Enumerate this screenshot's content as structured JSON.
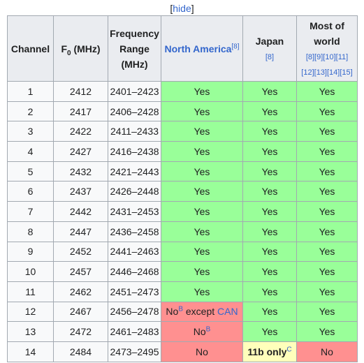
{
  "toggle": {
    "bracket_open": "[",
    "label": "hide",
    "bracket_close": "]"
  },
  "headers": {
    "channel": "Channel",
    "f0_main": "F",
    "f0_sub": "0",
    "f0_unit": " (MHz)",
    "freq_range": "Frequency Range (MHz)",
    "na_label": "North America",
    "na_ref": "[8]",
    "japan_label": "Japan",
    "japan_ref": "[8]",
    "world_label": "Most of world",
    "world_refs_line1": "[8][9][10][11]",
    "world_refs_line2": "[12][13][14][15]"
  },
  "rows": [
    {
      "ch": "1",
      "f0": "2412",
      "range": "2401–2423",
      "na": "Yes",
      "jp": "Yes",
      "world": "Yes"
    },
    {
      "ch": "2",
      "f0": "2417",
      "range": "2406–2428",
      "na": "Yes",
      "jp": "Yes",
      "world": "Yes"
    },
    {
      "ch": "3",
      "f0": "2422",
      "range": "2411–2433",
      "na": "Yes",
      "jp": "Yes",
      "world": "Yes"
    },
    {
      "ch": "4",
      "f0": "2427",
      "range": "2416–2438",
      "na": "Yes",
      "jp": "Yes",
      "world": "Yes"
    },
    {
      "ch": "5",
      "f0": "2432",
      "range": "2421–2443",
      "na": "Yes",
      "jp": "Yes",
      "world": "Yes"
    },
    {
      "ch": "6",
      "f0": "2437",
      "range": "2426–2448",
      "na": "Yes",
      "jp": "Yes",
      "world": "Yes"
    },
    {
      "ch": "7",
      "f0": "2442",
      "range": "2431–2453",
      "na": "Yes",
      "jp": "Yes",
      "world": "Yes"
    },
    {
      "ch": "8",
      "f0": "2447",
      "range": "2436–2458",
      "na": "Yes",
      "jp": "Yes",
      "world": "Yes"
    },
    {
      "ch": "9",
      "f0": "2452",
      "range": "2441–2463",
      "na": "Yes",
      "jp": "Yes",
      "world": "Yes"
    },
    {
      "ch": "10",
      "f0": "2457",
      "range": "2446–2468",
      "na": "Yes",
      "jp": "Yes",
      "world": "Yes"
    },
    {
      "ch": "11",
      "f0": "2462",
      "range": "2451–2473",
      "na": "Yes",
      "jp": "Yes",
      "world": "Yes"
    },
    {
      "ch": "12",
      "f0": "2467",
      "range": "2456–2478",
      "na_prefix": "No",
      "na_sup": "B",
      "na_mid": " except ",
      "na_link": "CAN",
      "jp": "Yes",
      "world": "Yes"
    },
    {
      "ch": "13",
      "f0": "2472",
      "range": "2461–2483",
      "na_prefix": "No",
      "na_sup": "B",
      "jp": "Yes",
      "world": "Yes"
    },
    {
      "ch": "14",
      "f0": "2484",
      "range": "2473–2495",
      "na": "No",
      "jp_bold": "11b only",
      "jp_sup": "C",
      "world": "No"
    }
  ],
  "colors": {
    "yes": "#99ff99",
    "no": "#ff9090",
    "header_bg": "#eaecf0",
    "cell_bg": "#f8f9fa",
    "link": "#3366cc"
  }
}
